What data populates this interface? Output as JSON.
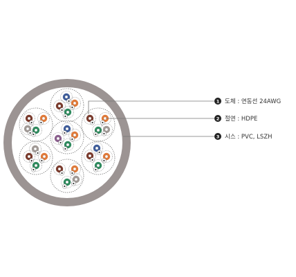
{
  "colors": {
    "jacket": "#9c9493",
    "core_fill": "#ffffff",
    "dotted_outline": "#5a5a5a",
    "leader_line": "#777777",
    "badge": "#222222",
    "conductor": "#ffffff",
    "pair_colors": [
      "blue-#3f5d9a",
      "orange-#e07a3a",
      "green-#2f8a5e",
      "brown-#7a3b2d",
      "grey-#a19a96",
      "purple-#8a5f8d"
    ]
  },
  "icons": [
    "numbered-circle-badge"
  ],
  "callouts": [
    {
      "number": "1",
      "text": "도체 : 연동선 24AWG"
    },
    {
      "number": "2",
      "text": "절연 : HDPE"
    },
    {
      "number": "3",
      "text": "시스 : PVC, LSZH"
    }
  ]
}
